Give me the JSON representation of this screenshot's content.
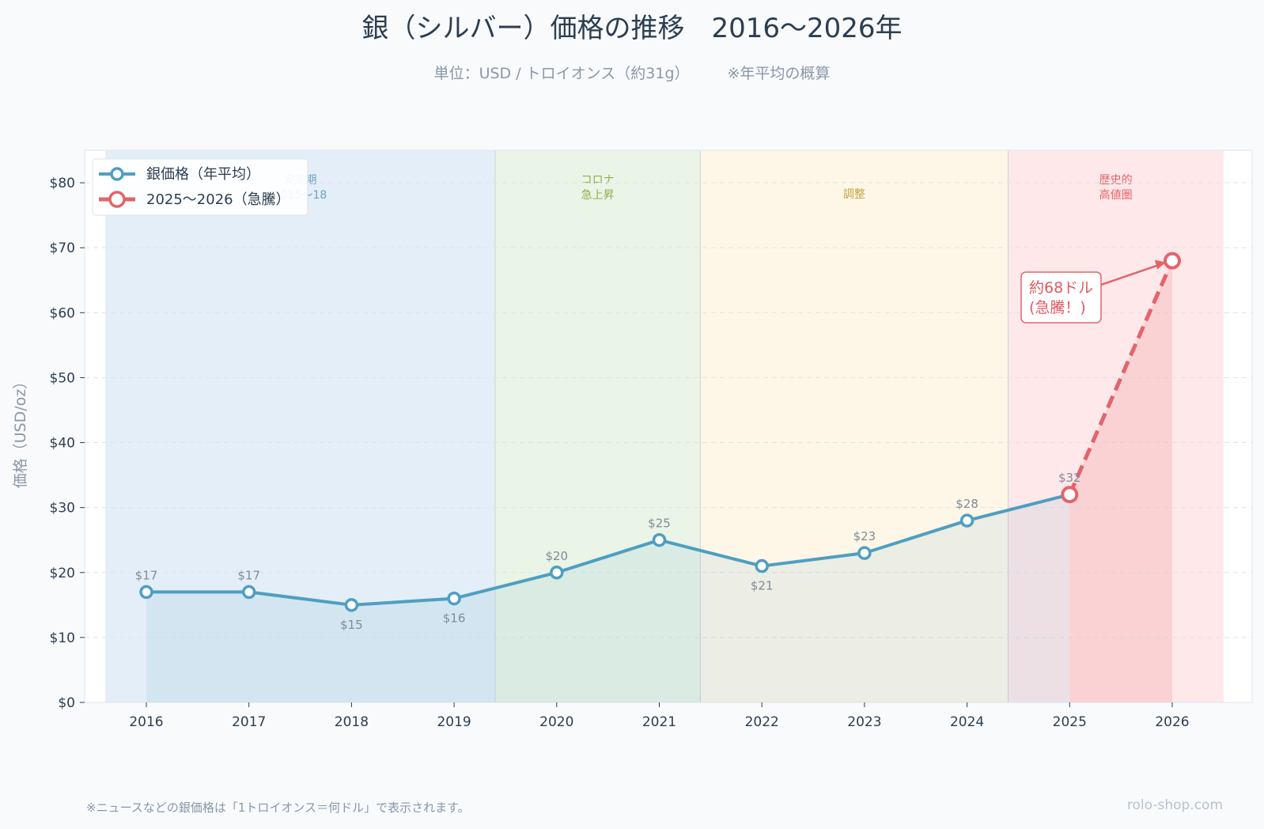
{
  "title": "銀（シルバー）価格の推移　2016〜2026年",
  "subtitle": "単位：USD / トロイオンス（約31g）",
  "subtitle_note": "※年平均の概算",
  "footer_note": "※ニュースなどの銀価格は「1トロイオンス＝何ドル」で表示されます。",
  "footer_site": "rolo-shop.com",
  "colors": {
    "main_line": "#4e9fc1",
    "surge_line": "#e5636b",
    "text": "#2c3e50",
    "muted": "#8a98a6"
  },
  "chart_data": {
    "type": "line",
    "ylabel": "価格（USD/oz）",
    "xlabel": "",
    "ylim": [
      0,
      85
    ],
    "yticks": [
      0,
      10,
      20,
      30,
      40,
      50,
      60,
      70,
      80
    ],
    "ytick_labels": [
      "$0",
      "$10",
      "$20",
      "$30",
      "$40",
      "$50",
      "$60",
      "$70",
      "$80"
    ],
    "x": [
      "2016",
      "2017",
      "2018",
      "2019",
      "2020",
      "2021",
      "2022",
      "2023",
      "2024",
      "2025",
      "2026"
    ],
    "grid": "horizontal dashed",
    "legend_position": "top-left",
    "series": [
      {
        "name": "銀価格（年平均）",
        "color": "#4e9fc1",
        "style": "solid",
        "points": [
          {
            "x": "2016",
            "y": 17,
            "label": "$17",
            "label_pos": "above"
          },
          {
            "x": "2017",
            "y": 17,
            "label": "$17",
            "label_pos": "above"
          },
          {
            "x": "2018",
            "y": 15,
            "label": "$15",
            "label_pos": "below"
          },
          {
            "x": "2019",
            "y": 16,
            "label": "$16",
            "label_pos": "below"
          },
          {
            "x": "2020",
            "y": 20,
            "label": "$20",
            "label_pos": "above"
          },
          {
            "x": "2021",
            "y": 25,
            "label": "$25",
            "label_pos": "above"
          },
          {
            "x": "2022",
            "y": 21,
            "label": "$21",
            "label_pos": "below"
          },
          {
            "x": "2023",
            "y": 23,
            "label": "$23",
            "label_pos": "above"
          },
          {
            "x": "2024",
            "y": 28,
            "label": "$28",
            "label_pos": "above"
          },
          {
            "x": "2025",
            "y": 32,
            "label": "$32",
            "label_pos": "above"
          }
        ]
      },
      {
        "name": "2025〜2026（急騰）",
        "color": "#e5636b",
        "style": "dashed",
        "points": [
          {
            "x": "2025",
            "y": 32,
            "label": "",
            "label_pos": "above"
          },
          {
            "x": "2026",
            "y": 68,
            "label": "",
            "label_pos": "above"
          }
        ]
      }
    ],
    "periods": [
      {
        "label": [
          "安定期",
          "2015〜18"
        ],
        "from": 2015.6,
        "to": 2019.4,
        "color": "#dbe8f5",
        "text_color": "#6aa3c0"
      },
      {
        "label": [
          "コロナ",
          "急上昇"
        ],
        "from": 2019.4,
        "to": 2021.4,
        "color": "#e3f0df",
        "text_color": "#8fb04a"
      },
      {
        "label": [
          "調整"
        ],
        "from": 2021.4,
        "to": 2024.4,
        "color": "#fdf4e0",
        "text_color": "#c2a640"
      },
      {
        "label": [
          "歴史的",
          "高値圏"
        ],
        "from": 2024.4,
        "to": 2026.5,
        "color": "#fde0e2",
        "text_color": "#e5636b"
      }
    ],
    "annotation": {
      "text": [
        "約68ドル",
        "(急騰！)"
      ],
      "x": "2026",
      "y": 68
    }
  }
}
